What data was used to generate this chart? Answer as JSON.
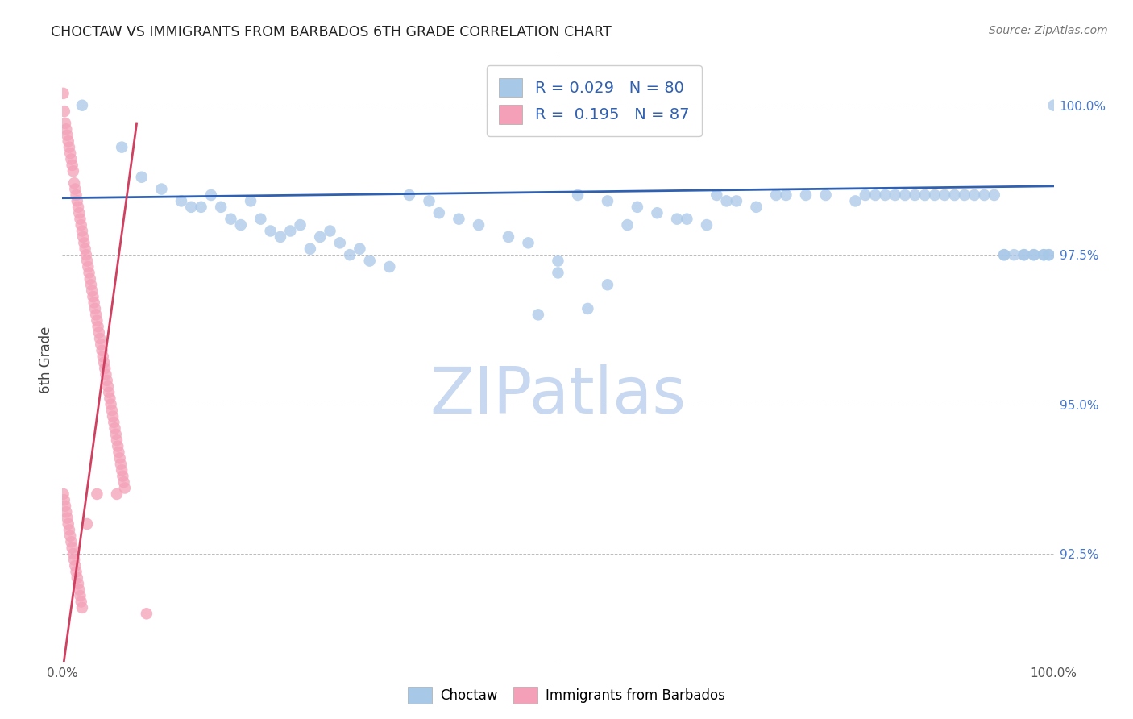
{
  "title": "CHOCTAW VS IMMIGRANTS FROM BARBADOS 6TH GRADE CORRELATION CHART",
  "source_text": "Source: ZipAtlas.com",
  "ylabel": "6th Grade",
  "watermark": "ZIPatlas",
  "legend": {
    "blue_R": "R = 0.029",
    "blue_N": "N = 80",
    "pink_R": "R = 0.195",
    "pink_N": "N = 87"
  },
  "blue_color": "#A8C8E8",
  "pink_color": "#F4A0B8",
  "blue_line_color": "#3060B0",
  "pink_line_color": "#D04060",
  "grid_color": "#BBBBBB",
  "background_color": "#FFFFFF",
  "watermark_color": "#C8D8F0",
  "ytick_labels": [
    "92.5%",
    "95.0%",
    "97.5%",
    "100.0%"
  ],
  "ytick_values": [
    0.925,
    0.95,
    0.975,
    1.0
  ],
  "xlim": [
    0.0,
    1.0
  ],
  "ylim": [
    0.907,
    1.008
  ],
  "blue_trend_x": [
    0.0,
    1.0
  ],
  "blue_trend_y": [
    0.9845,
    0.9865
  ],
  "pink_trend_x": [
    0.0,
    0.075
  ],
  "pink_trend_y": [
    0.905,
    0.997
  ],
  "blue_x": [
    0.02,
    0.06,
    0.08,
    0.1,
    0.12,
    0.13,
    0.14,
    0.15,
    0.16,
    0.17,
    0.18,
    0.19,
    0.2,
    0.21,
    0.22,
    0.23,
    0.24,
    0.25,
    0.26,
    0.27,
    0.28,
    0.29,
    0.3,
    0.31,
    0.33,
    0.35,
    0.37,
    0.38,
    0.4,
    0.42,
    0.45,
    0.47,
    0.5,
    0.52,
    0.55,
    0.57,
    0.58,
    0.6,
    0.62,
    0.63,
    0.65,
    0.66,
    0.67,
    0.68,
    0.7,
    0.72,
    0.73,
    0.75,
    0.77,
    0.8,
    0.81,
    0.82,
    0.83,
    0.84,
    0.85,
    0.86,
    0.87,
    0.88,
    0.89,
    0.9,
    0.91,
    0.92,
    0.93,
    0.94,
    0.95,
    0.95,
    0.96,
    0.97,
    0.97,
    0.98,
    0.98,
    0.99,
    0.99,
    0.995,
    0.995,
    1.0,
    0.5,
    0.55,
    0.48,
    0.53
  ],
  "blue_y": [
    1.0,
    0.993,
    0.988,
    0.986,
    0.984,
    0.983,
    0.983,
    0.985,
    0.983,
    0.981,
    0.98,
    0.984,
    0.981,
    0.979,
    0.978,
    0.979,
    0.98,
    0.976,
    0.978,
    0.979,
    0.977,
    0.975,
    0.976,
    0.974,
    0.973,
    0.985,
    0.984,
    0.982,
    0.981,
    0.98,
    0.978,
    0.977,
    0.974,
    0.985,
    0.984,
    0.98,
    0.983,
    0.982,
    0.981,
    0.981,
    0.98,
    0.985,
    0.984,
    0.984,
    0.983,
    0.985,
    0.985,
    0.985,
    0.985,
    0.984,
    0.985,
    0.985,
    0.985,
    0.985,
    0.985,
    0.985,
    0.985,
    0.985,
    0.985,
    0.985,
    0.985,
    0.985,
    0.985,
    0.985,
    0.975,
    0.975,
    0.975,
    0.975,
    0.975,
    0.975,
    0.975,
    0.975,
    0.975,
    0.975,
    0.975,
    1.0,
    0.972,
    0.97,
    0.965,
    0.966
  ],
  "pink_x": [
    0.001,
    0.002,
    0.003,
    0.004,
    0.005,
    0.006,
    0.007,
    0.008,
    0.009,
    0.01,
    0.011,
    0.012,
    0.013,
    0.014,
    0.015,
    0.016,
    0.017,
    0.018,
    0.019,
    0.02,
    0.021,
    0.022,
    0.023,
    0.024,
    0.025,
    0.026,
    0.027,
    0.028,
    0.029,
    0.03,
    0.031,
    0.032,
    0.033,
    0.034,
    0.035,
    0.036,
    0.037,
    0.038,
    0.039,
    0.04,
    0.041,
    0.042,
    0.043,
    0.044,
    0.045,
    0.046,
    0.047,
    0.048,
    0.049,
    0.05,
    0.051,
    0.052,
    0.053,
    0.054,
    0.055,
    0.056,
    0.057,
    0.058,
    0.059,
    0.06,
    0.061,
    0.062,
    0.063,
    0.001,
    0.002,
    0.003,
    0.004,
    0.005,
    0.006,
    0.007,
    0.008,
    0.009,
    0.01,
    0.011,
    0.012,
    0.013,
    0.014,
    0.015,
    0.016,
    0.017,
    0.018,
    0.019,
    0.02,
    0.025,
    0.035,
    0.055,
    0.085
  ],
  "pink_y": [
    1.002,
    0.999,
    0.997,
    0.996,
    0.995,
    0.994,
    0.993,
    0.992,
    0.991,
    0.99,
    0.989,
    0.987,
    0.986,
    0.985,
    0.984,
    0.983,
    0.982,
    0.981,
    0.98,
    0.979,
    0.978,
    0.977,
    0.976,
    0.975,
    0.974,
    0.973,
    0.972,
    0.971,
    0.97,
    0.969,
    0.968,
    0.967,
    0.966,
    0.965,
    0.964,
    0.963,
    0.962,
    0.961,
    0.96,
    0.959,
    0.958,
    0.957,
    0.956,
    0.955,
    0.954,
    0.953,
    0.952,
    0.951,
    0.95,
    0.949,
    0.948,
    0.947,
    0.946,
    0.945,
    0.944,
    0.943,
    0.942,
    0.941,
    0.94,
    0.939,
    0.938,
    0.937,
    0.936,
    0.935,
    0.934,
    0.933,
    0.932,
    0.931,
    0.93,
    0.929,
    0.928,
    0.927,
    0.926,
    0.925,
    0.924,
    0.923,
    0.922,
    0.921,
    0.92,
    0.919,
    0.918,
    0.917,
    0.916,
    0.93,
    0.935,
    0.935,
    0.915
  ]
}
